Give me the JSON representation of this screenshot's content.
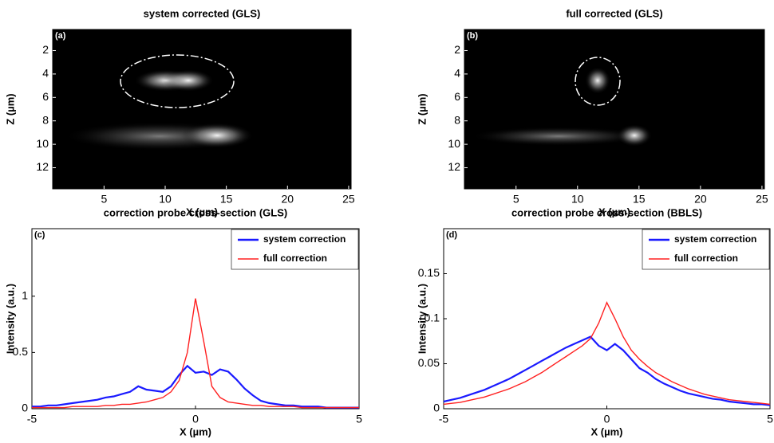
{
  "chart_data": [
    {
      "type": "image",
      "title": "system corrected (GLS)",
      "panel_label": "(a)",
      "xlabel": "X (µm)",
      "ylabel": "Z (µm)",
      "xlim": [
        0.8,
        25.2
      ],
      "xticks": [
        5,
        10,
        15,
        20,
        25
      ],
      "ylim": [
        13.8,
        0.2
      ],
      "yticks": [
        2,
        4,
        6,
        8,
        10,
        12
      ]
    },
    {
      "type": "image",
      "title": "full corrected (GLS)",
      "panel_label": "(b)",
      "xlabel": "X (µm)",
      "ylabel": "Z (µm)",
      "xlim": [
        0.8,
        25.2
      ],
      "xticks": [
        5,
        10,
        15,
        20,
        25
      ],
      "ylim": [
        13.8,
        0.2
      ],
      "yticks": [
        2,
        4,
        6,
        8,
        10,
        12
      ]
    },
    {
      "type": "line",
      "title": "correction probe cross-section (GLS)",
      "panel_label": "(c)",
      "xlabel": "X (µm)",
      "ylabel": "Intensity (a.u.)",
      "xlim": [
        -5,
        5
      ],
      "xticks": [
        -5,
        0,
        5
      ],
      "ylim": [
        0,
        1.6
      ],
      "yticks": [
        0,
        0.5,
        1
      ],
      "legend": "upper right",
      "x": [
        -5,
        -4.75,
        -4.5,
        -4.25,
        -4,
        -3.75,
        -3.5,
        -3.25,
        -3,
        -2.75,
        -2.5,
        -2.25,
        -2,
        -1.75,
        -1.5,
        -1.25,
        -1,
        -0.75,
        -0.5,
        -0.25,
        0,
        0.25,
        0.5,
        0.75,
        1,
        1.25,
        1.5,
        1.75,
        2,
        2.25,
        2.5,
        2.75,
        3,
        3.25,
        3.5,
        3.75,
        4,
        4.25,
        4.5,
        4.75,
        5
      ],
      "series": [
        {
          "name": "system correction",
          "color": "#1a1aff",
          "values": [
            0.02,
            0.02,
            0.03,
            0.03,
            0.04,
            0.05,
            0.06,
            0.07,
            0.08,
            0.1,
            0.11,
            0.13,
            0.15,
            0.2,
            0.17,
            0.16,
            0.15,
            0.2,
            0.3,
            0.38,
            0.32,
            0.33,
            0.3,
            0.35,
            0.33,
            0.26,
            0.18,
            0.12,
            0.07,
            0.05,
            0.04,
            0.03,
            0.03,
            0.02,
            0.02,
            0.02,
            0.01,
            0.01,
            0.01,
            0.01,
            0.01
          ]
        },
        {
          "name": "full correction",
          "color": "#ff2020",
          "values": [
            0.01,
            0.01,
            0.01,
            0.01,
            0.01,
            0.02,
            0.02,
            0.02,
            0.02,
            0.03,
            0.03,
            0.04,
            0.04,
            0.05,
            0.06,
            0.08,
            0.1,
            0.15,
            0.25,
            0.5,
            0.98,
            0.6,
            0.2,
            0.1,
            0.06,
            0.05,
            0.04,
            0.03,
            0.03,
            0.02,
            0.02,
            0.02,
            0.02,
            0.01,
            0.01,
            0.01,
            0.01,
            0.01,
            0.01,
            0.01,
            0.01
          ]
        }
      ]
    },
    {
      "type": "line",
      "title": "correction probe cross-section (BBLS)",
      "panel_label": "(d)",
      "xlabel": "X (µm)",
      "ylabel": "Intensity (a.u.)",
      "xlim": [
        -5,
        5
      ],
      "xticks": [
        -5,
        0,
        5
      ],
      "ylim": [
        0,
        0.2
      ],
      "yticks": [
        0,
        0.05,
        0.1,
        0.15
      ],
      "legend": "upper right",
      "x": [
        -5,
        -4.75,
        -4.5,
        -4.25,
        -4,
        -3.75,
        -3.5,
        -3.25,
        -3,
        -2.75,
        -2.5,
        -2.25,
        -2,
        -1.75,
        -1.5,
        -1.25,
        -1,
        -0.75,
        -0.5,
        -0.25,
        0,
        0.25,
        0.5,
        0.75,
        1,
        1.25,
        1.5,
        1.75,
        2,
        2.25,
        2.5,
        2.75,
        3,
        3.25,
        3.5,
        3.75,
        4,
        4.25,
        4.5,
        4.75,
        5
      ],
      "series": [
        {
          "name": "system correction",
          "color": "#1a1aff",
          "values": [
            0.008,
            0.01,
            0.012,
            0.015,
            0.018,
            0.021,
            0.025,
            0.029,
            0.033,
            0.038,
            0.043,
            0.048,
            0.053,
            0.058,
            0.063,
            0.068,
            0.072,
            0.076,
            0.08,
            0.07,
            0.065,
            0.072,
            0.065,
            0.055,
            0.045,
            0.04,
            0.033,
            0.028,
            0.024,
            0.02,
            0.017,
            0.015,
            0.013,
            0.011,
            0.01,
            0.008,
            0.007,
            0.006,
            0.005,
            0.005,
            0.004
          ]
        },
        {
          "name": "full correction",
          "color": "#ff2020",
          "values": [
            0.005,
            0.006,
            0.007,
            0.009,
            0.011,
            0.013,
            0.016,
            0.019,
            0.022,
            0.026,
            0.03,
            0.035,
            0.04,
            0.046,
            0.052,
            0.058,
            0.064,
            0.07,
            0.078,
            0.095,
            0.118,
            0.1,
            0.08,
            0.065,
            0.055,
            0.047,
            0.04,
            0.035,
            0.03,
            0.026,
            0.022,
            0.019,
            0.016,
            0.014,
            0.012,
            0.01,
            0.009,
            0.008,
            0.007,
            0.006,
            0.005
          ]
        }
      ]
    }
  ]
}
